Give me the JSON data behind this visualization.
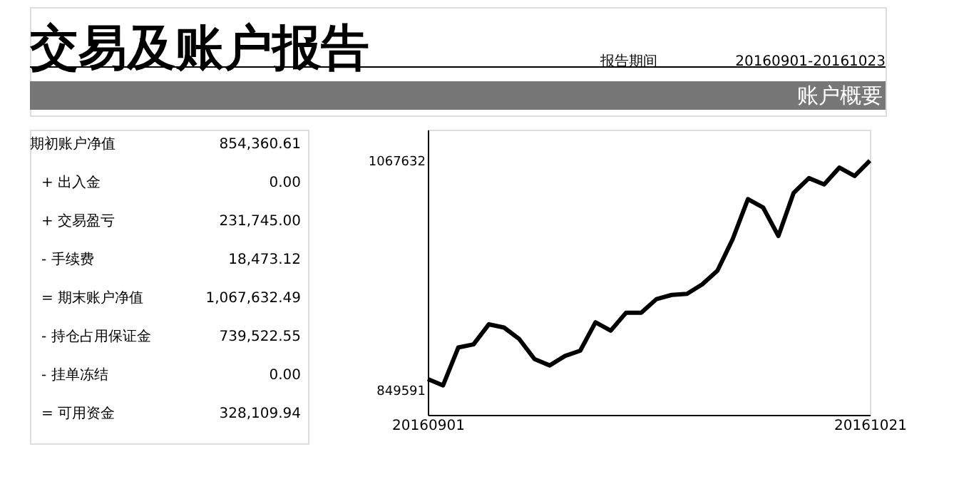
{
  "chart_data": [
    {
      "type": "other",
      "title": "交易及账户报告",
      "annotations": [
        "报告期间",
        "20160901-20161023",
        "账户概要",
        "期初账户净值",
        "854,360.61",
        "+ 出入金",
        "0.00",
        "+ 交易盈亏",
        "231,745.00",
        "- 手续费",
        "18,473.12",
        "= 期末账户净值",
        "1,067,632.49",
        "- 持仓占用保证金",
        "739,522.55",
        "- 挂单冻结",
        "0.00",
        "= 可用资金",
        "328,109.94"
      ]
    },
    {
      "type": "line",
      "categories": [
        "20160901",
        null,
        null,
        null,
        null,
        null,
        null,
        null,
        null,
        null,
        null,
        null,
        null,
        null,
        null,
        null,
        null,
        null,
        null,
        null,
        null,
        null,
        null,
        null,
        null,
        null,
        null,
        null,
        null,
        "20161021"
      ],
      "values": [
        860000,
        854000,
        890000,
        893000,
        912000,
        909000,
        898000,
        879000,
        873000,
        882000,
        887000,
        914000,
        906000,
        923000,
        923000,
        936000,
        940000,
        941000,
        950000,
        963000,
        993000,
        1031000,
        1023000,
        996000,
        1037000,
        1051000,
        1045000,
        1061000,
        1053000,
        1067632
      ],
      "color": "#000000",
      "ylim": [
        826000,
        1097000
      ],
      "yticks": [
        849591,
        1067632
      ],
      "grid": false,
      "marker": "none",
      "line_style": "solid"
    }
  ]
}
